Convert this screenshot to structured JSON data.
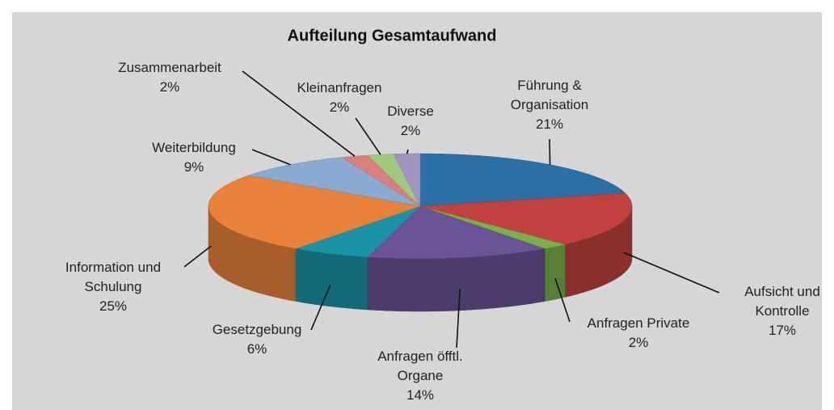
{
  "chart_data": {
    "type": "pie",
    "title": "Aufteilung Gesamtaufwand",
    "categories": [
      "Führung & Organisation",
      "Aufsicht und Kontrolle",
      "Anfragen Private",
      "Anfragen öfftl. Organe",
      "Gesetzgebung",
      "Information und Schulung",
      "Weiterbildung",
      "Zusammenarbeit",
      "Kleinanfragen",
      "Diverse"
    ],
    "values": [
      21,
      17,
      2,
      14,
      6,
      25,
      9,
      2,
      2,
      2
    ],
    "value_labels": [
      "21%",
      "17%",
      "2%",
      "14%",
      "6%",
      "25%",
      "9%",
      "2%",
      "2%",
      "2%"
    ],
    "colors": [
      "#2a6fa6",
      "#c0413e",
      "#79b04a",
      "#6a5495",
      "#1a93a5",
      "#e8823a",
      "#8aaad2",
      "#d9807e",
      "#9fc77f",
      "#a395c2"
    ]
  }
}
